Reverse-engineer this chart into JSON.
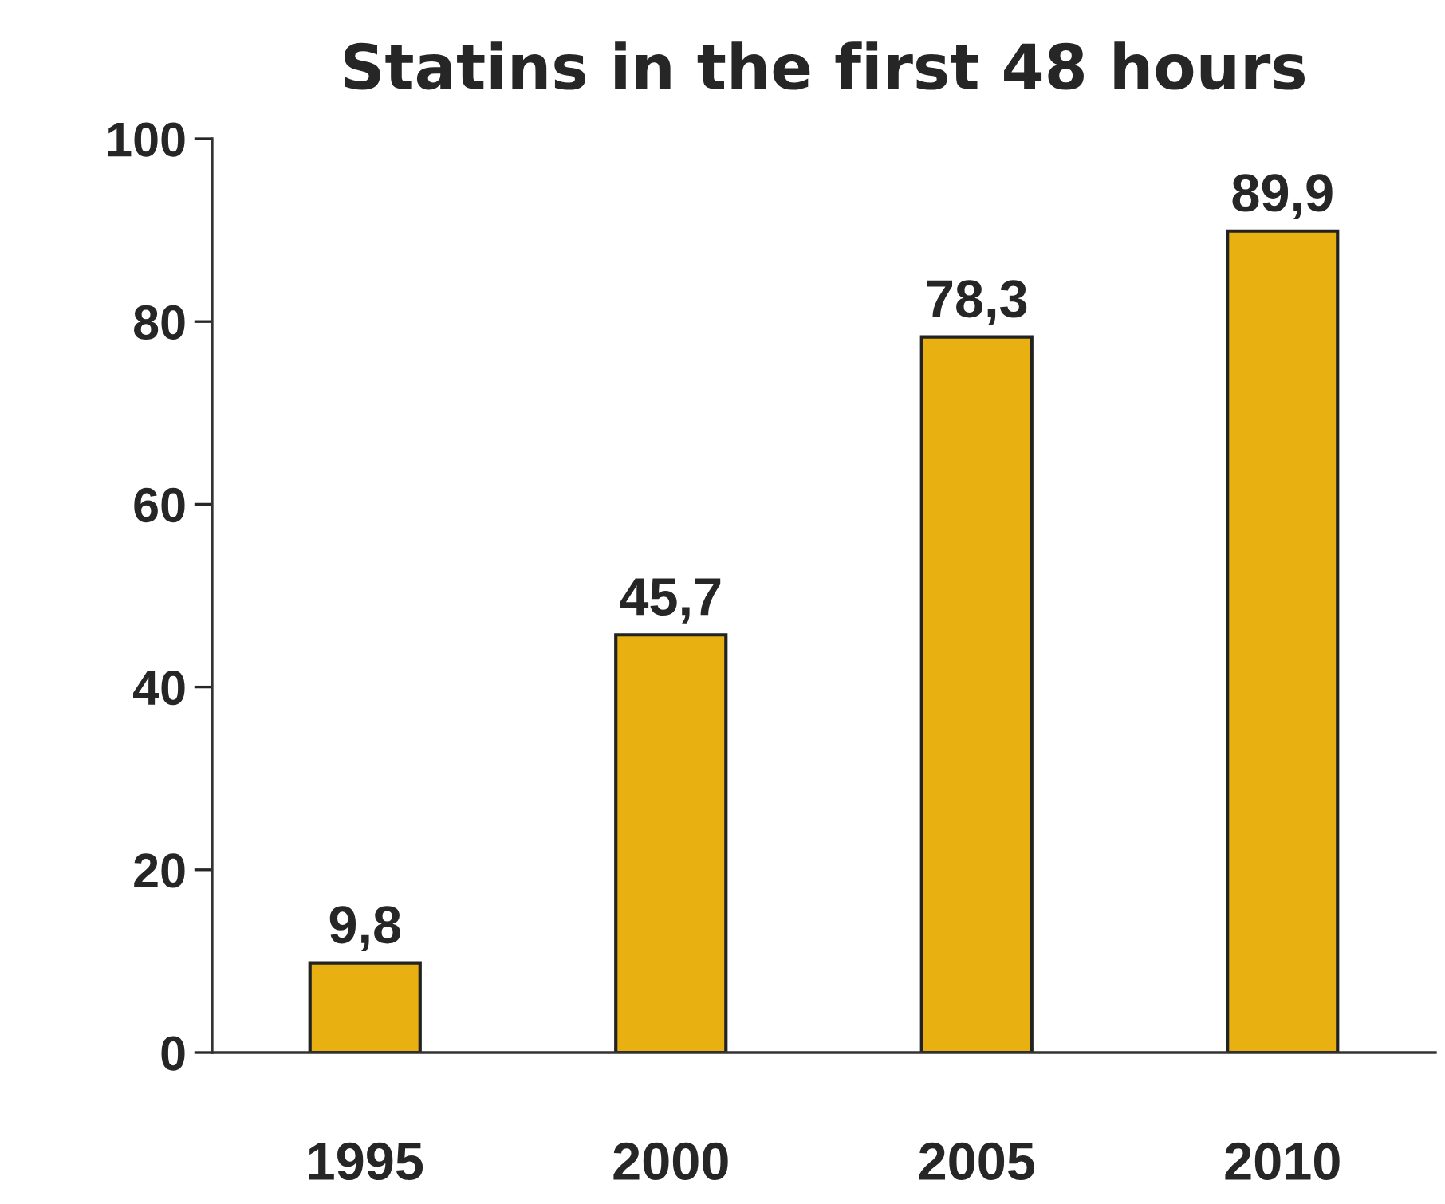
{
  "chart_data": {
    "type": "bar",
    "title": "Statins in the first 48 hours",
    "categories": [
      "1995",
      "2000",
      "2005",
      "2010"
    ],
    "values": [
      9.8,
      45.7,
      78.3,
      89.9
    ],
    "value_labels": [
      "9,8",
      "45,7",
      "78,3",
      "89,9"
    ],
    "color": "#e8b010",
    "ylim": [
      0,
      100
    ],
    "yticks": [
      0,
      20,
      40,
      60,
      80,
      100
    ],
    "grid": false,
    "legend": false
  }
}
